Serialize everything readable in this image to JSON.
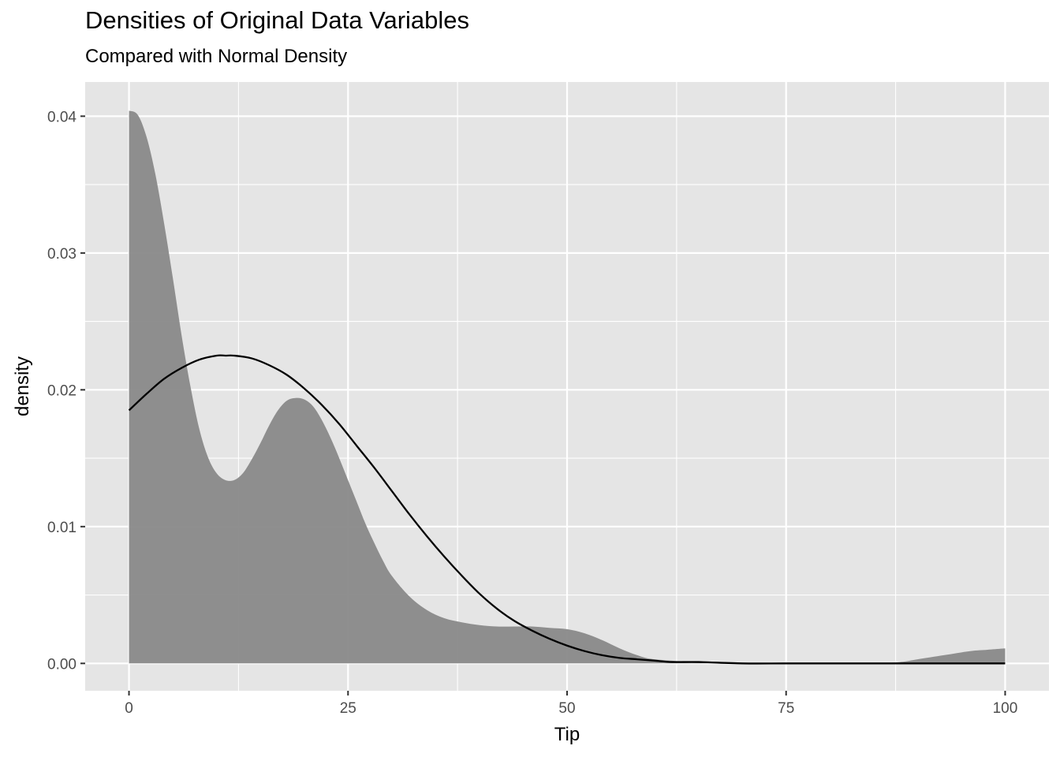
{
  "chart_data": {
    "type": "area",
    "title": "Densities of Original Data Variables",
    "subtitle": "Compared with Normal Density",
    "xlabel": "Tip",
    "ylabel": "density",
    "xlim": [
      -5,
      105
    ],
    "ylim": [
      -0.002,
      0.0425
    ],
    "x_ticks": [
      0,
      25,
      50,
      75,
      100
    ],
    "x_tick_labels": [
      "0",
      "25",
      "50",
      "75",
      "100"
    ],
    "y_ticks": [
      0.0,
      0.01,
      0.02,
      0.03,
      0.04
    ],
    "y_tick_labels": [
      "0.00",
      "0.01",
      "0.02",
      "0.03",
      "0.04"
    ],
    "grid": true,
    "legend": "none",
    "colors": {
      "panel_background": "#e5e5e5",
      "grid": "#ffffff",
      "density_fill": "#898989",
      "normal_line": "#000000",
      "tick_text": "#4d4d4d"
    },
    "series": [
      {
        "kind": "area",
        "x": [
          0,
          1,
          2,
          3,
          4,
          5,
          6,
          7,
          8,
          9,
          10,
          11,
          12,
          13,
          14,
          15,
          16,
          17,
          18,
          19,
          20,
          21,
          22,
          23,
          24,
          25,
          26,
          27,
          28,
          29,
          30,
          32,
          34,
          36,
          38,
          40,
          42,
          44,
          46,
          48,
          50,
          52,
          54,
          56,
          58,
          60,
          65,
          70,
          75,
          80,
          85,
          88,
          90,
          93,
          96,
          98,
          100
        ],
        "y": [
          0.0404,
          0.0401,
          0.0385,
          0.0358,
          0.0322,
          0.0282,
          0.024,
          0.0203,
          0.0172,
          0.0151,
          0.0139,
          0.0134,
          0.0134,
          0.0139,
          0.0149,
          0.0161,
          0.0174,
          0.0185,
          0.0192,
          0.0194,
          0.0193,
          0.0188,
          0.0178,
          0.0165,
          0.015,
          0.0134,
          0.0118,
          0.0102,
          0.0088,
          0.0075,
          0.0064,
          0.0049,
          0.0039,
          0.0033,
          0.003,
          0.0028,
          0.0027,
          0.0027,
          0.0027,
          0.0026,
          0.0025,
          0.0022,
          0.0017,
          0.0011,
          0.0006,
          0.0003,
          0.0001,
          0.0,
          0.0,
          0.0,
          0.0,
          0.0001,
          0.0003,
          0.0006,
          0.0009,
          0.001,
          0.0011
        ]
      },
      {
        "kind": "line",
        "x": [
          0,
          2,
          4,
          6,
          8,
          10,
          11,
          12,
          14,
          16,
          18,
          20,
          22,
          24,
          26,
          28,
          30,
          32,
          34,
          36,
          38,
          40,
          42,
          44,
          46,
          48,
          50,
          52,
          54,
          56,
          58,
          60,
          62,
          65,
          70,
          75,
          80,
          90,
          100
        ],
        "y": [
          0.0185,
          0.0197,
          0.0208,
          0.0216,
          0.0222,
          0.0225,
          0.0225,
          0.0225,
          0.0223,
          0.0218,
          0.0211,
          0.0201,
          0.0189,
          0.0175,
          0.0159,
          0.0143,
          0.0126,
          0.0109,
          0.0093,
          0.0078,
          0.0064,
          0.0051,
          0.004,
          0.0031,
          0.0024,
          0.0018,
          0.0013,
          0.0009,
          0.0006,
          0.0004,
          0.0003,
          0.0002,
          0.0001,
          0.0001,
          0.0,
          0.0,
          0.0,
          0.0,
          0.0
        ]
      }
    ]
  }
}
